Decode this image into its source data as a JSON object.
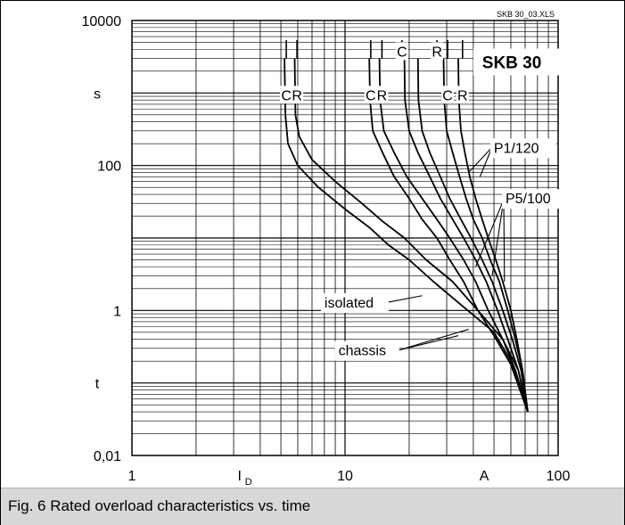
{
  "chart_data": {
    "type": "line",
    "x_scale": "log",
    "y_scale": "log",
    "xlim": [
      1,
      100
    ],
    "ylim": [
      0.01,
      10000
    ],
    "x_ticks": [
      {
        "value": 1,
        "label": "1"
      },
      {
        "value": 10,
        "label": "10"
      },
      {
        "value": 100,
        "label": "100"
      }
    ],
    "y_ticks": [
      {
        "value": 10000,
        "label": "10000"
      },
      {
        "value": 100,
        "label": "100"
      },
      {
        "value": 1,
        "label": "1"
      },
      {
        "value": 0.01,
        "label": "0,01"
      }
    ],
    "xlabel_main": "I",
    "xlabel_sub": "D",
    "x_unit": "A",
    "y_unit": "s",
    "y_var": "t",
    "grid": true,
    "source_tag": "SKB 30_03.XLS",
    "device": "SKB 30",
    "series": [
      {
        "label": "C",
        "x": [
          5.2,
          5.25,
          5.4,
          6.0,
          7.5,
          10,
          13,
          16,
          20,
          26,
          35,
          50,
          60,
          72
        ],
        "y": [
          3000,
          500,
          200,
          100,
          50,
          25,
          14,
          8,
          5,
          2.5,
          1.2,
          0.5,
          0.2,
          0.04
        ]
      },
      {
        "label": "R",
        "x": [
          5.8,
          5.85,
          6.1,
          7.0,
          9.0,
          12,
          15,
          19,
          24,
          32,
          42,
          55,
          65,
          72
        ],
        "y": [
          3000,
          500,
          250,
          120,
          60,
          30,
          17,
          10,
          5,
          2.5,
          1.0,
          0.4,
          0.15,
          0.04
        ]
      },
      {
        "label": "C",
        "x": [
          13,
          13.1,
          13.5,
          15,
          17,
          20,
          23,
          27,
          31,
          36,
          42,
          50,
          60,
          72
        ],
        "y": [
          3000,
          800,
          300,
          150,
          70,
          35,
          18,
          10,
          5,
          2.5,
          1.0,
          0.45,
          0.18,
          0.04
        ]
      },
      {
        "label": "R",
        "x": [
          14.5,
          14.6,
          15.2,
          17,
          19.5,
          23,
          27,
          31,
          36,
          41,
          47,
          55,
          63,
          72
        ],
        "y": [
          3000,
          800,
          300,
          150,
          70,
          35,
          18,
          10,
          5,
          2.5,
          1.0,
          0.4,
          0.15,
          0.04
        ]
      },
      {
        "label": "C",
        "x": [
          19,
          19.1,
          20,
          22,
          25,
          28,
          32,
          36,
          41,
          46,
          52,
          58,
          65,
          72
        ],
        "y": [
          3000,
          800,
          300,
          150,
          70,
          35,
          18,
          10,
          5,
          2.5,
          1.0,
          0.4,
          0.15,
          0.04
        ]
      },
      {
        "label": "R",
        "x": [
          22,
          22.1,
          23,
          25,
          28,
          31,
          35,
          39,
          44,
          49,
          55,
          61,
          67,
          72
        ],
        "y": [
          3000,
          800,
          300,
          150,
          70,
          35,
          18,
          10,
          5,
          2.5,
          1.0,
          0.4,
          0.15,
          0.04
        ]
      },
      {
        "label": "C",
        "x": [
          29,
          29.2,
          30,
          32,
          34.5,
          37,
          40,
          44,
          48,
          53,
          58,
          63,
          68,
          72
        ],
        "y": [
          3000,
          800,
          300,
          150,
          70,
          35,
          18,
          10,
          5,
          2.5,
          1.0,
          0.4,
          0.15,
          0.04
        ]
      },
      {
        "label": "R",
        "x": [
          34,
          34.2,
          35,
          36.5,
          38.5,
          41,
          44,
          47,
          51,
          55,
          60,
          64,
          68,
          72
        ],
        "y": [
          3000,
          800,
          300,
          150,
          70,
          35,
          18,
          10,
          5,
          2.5,
          1.0,
          0.4,
          0.15,
          0.04
        ]
      }
    ],
    "annotations": [
      {
        "text": "P1/120",
        "x": 48,
        "y": 150
      },
      {
        "text": "P5/100",
        "x": 60,
        "y": 30
      },
      {
        "text": "isolated",
        "x": 14,
        "y": 1.1
      },
      {
        "text": "chassis",
        "x": 19,
        "y": 0.24
      }
    ],
    "curve_labels_top": [
      {
        "text": "C",
        "x": 5.3
      },
      {
        "text": "R",
        "x": 5.95
      },
      {
        "text": "C",
        "x": 13.2
      },
      {
        "text": "R",
        "x": 14.9
      },
      {
        "text": "C",
        "x": 18.5
      },
      {
        "text": "R",
        "x": 27
      },
      {
        "text": "C",
        "x": 30.3
      },
      {
        "text": "R",
        "x": 35.6
      }
    ]
  },
  "caption": "Fig. 6 Rated overload characteristics vs. time"
}
